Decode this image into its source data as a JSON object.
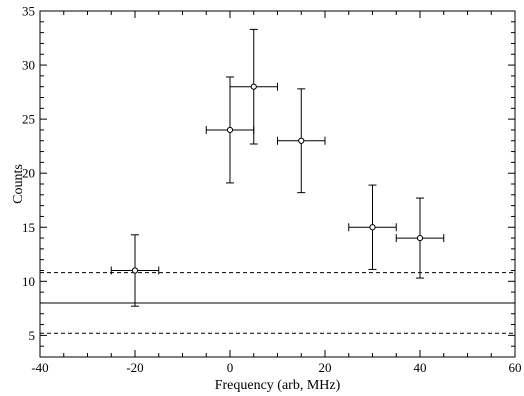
{
  "chart_data": {
    "type": "scatter",
    "title": "",
    "xlabel": "Frequency (arb, MHz)",
    "ylabel": "Counts",
    "xlim": [
      -40,
      60
    ],
    "ylim": [
      3,
      35
    ],
    "x_ticks": [
      -40,
      -20,
      0,
      20,
      40,
      60
    ],
    "y_ticks": [
      5,
      10,
      15,
      20,
      25,
      30,
      35
    ],
    "x_tick_labels": [
      "-40",
      "-20",
      "0",
      "20",
      "40",
      "60"
    ],
    "y_tick_labels": [
      "5",
      "10",
      "15",
      "20",
      "25",
      "30",
      "35"
    ],
    "grid": false,
    "series": [
      {
        "points": [
          {
            "x": -20,
            "y": 11,
            "xerr": 5,
            "yerr": 3.3
          },
          {
            "x": 0,
            "y": 24,
            "xerr": 5,
            "yerr": 4.9
          },
          {
            "x": 5,
            "y": 28,
            "xerr": 5,
            "yerr": 5.3
          },
          {
            "x": 15,
            "y": 23,
            "xerr": 5,
            "yerr": 4.8
          },
          {
            "x": 30,
            "y": 15,
            "xerr": 5,
            "yerr": 3.9
          },
          {
            "x": 40,
            "y": 14,
            "xerr": 5,
            "yerr": 3.7
          }
        ]
      }
    ],
    "reference_lines": [
      {
        "y": 8.0,
        "style": "solid"
      },
      {
        "y": 10.8,
        "style": "dashed"
      },
      {
        "y": 5.2,
        "style": "dashed"
      }
    ]
  }
}
